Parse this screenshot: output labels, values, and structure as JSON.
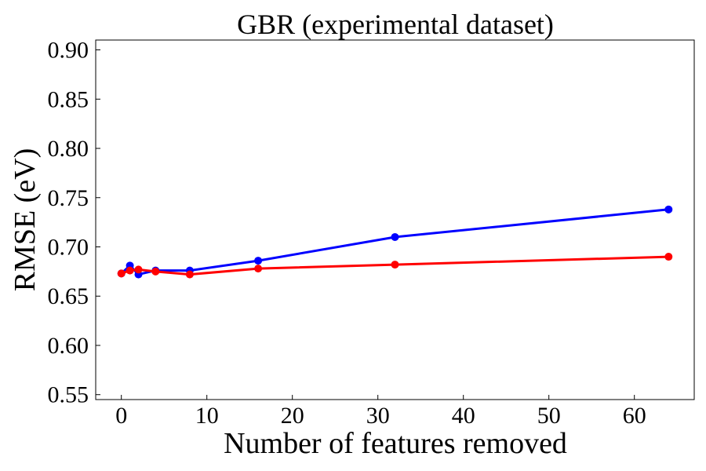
{
  "chart_data": {
    "type": "line",
    "title": "GBR (experimental dataset)",
    "xlabel": "Number of features removed",
    "ylabel": "RMSE (eV)",
    "xlim": [
      -3,
      67
    ],
    "ylim": [
      0.545,
      0.91
    ],
    "xticks": [
      0,
      10,
      20,
      30,
      40,
      50,
      60
    ],
    "yticks": [
      0.55,
      0.6,
      0.65,
      0.7,
      0.75,
      0.8,
      0.85,
      0.9
    ],
    "xtick_labels": [
      "0",
      "10",
      "20",
      "30",
      "40",
      "50",
      "60"
    ],
    "ytick_labels": [
      "0.55",
      "0.60",
      "0.65",
      "0.70",
      "0.75",
      "0.80",
      "0.85",
      "0.90"
    ],
    "grid": false,
    "series": [
      {
        "color": "#0000ff",
        "points": [
          {
            "x": 0,
            "y": 0.673
          },
          {
            "x": 1,
            "y": 0.681
          },
          {
            "x": 2,
            "y": 0.672
          },
          {
            "x": 4,
            "y": 0.676
          },
          {
            "x": 8,
            "y": 0.676
          },
          {
            "x": 16,
            "y": 0.686
          },
          {
            "x": 32,
            "y": 0.71
          },
          {
            "x": 64,
            "y": 0.738
          }
        ]
      },
      {
        "color": "#ff0000",
        "points": [
          {
            "x": 0,
            "y": 0.673
          },
          {
            "x": 1,
            "y": 0.676
          },
          {
            "x": 2,
            "y": 0.677
          },
          {
            "x": 4,
            "y": 0.675
          },
          {
            "x": 8,
            "y": 0.672
          },
          {
            "x": 16,
            "y": 0.678
          },
          {
            "x": 32,
            "y": 0.682
          },
          {
            "x": 64,
            "y": 0.69
          }
        ]
      }
    ]
  }
}
